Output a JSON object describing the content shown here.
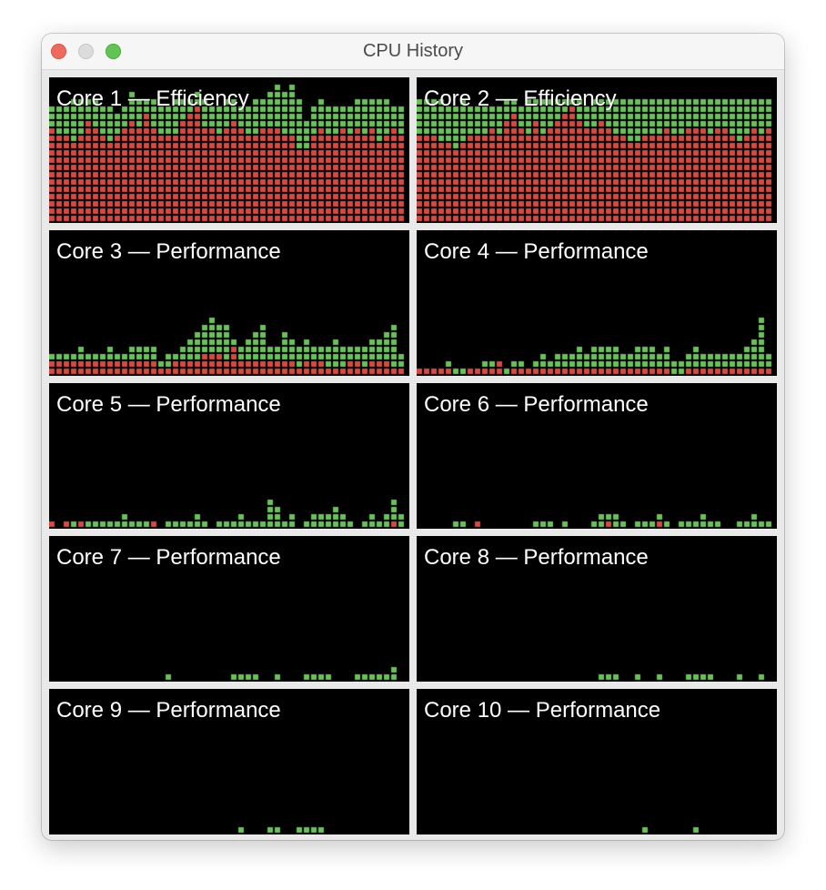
{
  "window": {
    "title": "CPU History"
  },
  "colors": {
    "system": "#d24b45",
    "user": "#6cc05c",
    "background": "#000000",
    "cell_gap": "#000000"
  },
  "cores": [
    {
      "label": "Core 1 — Efficiency",
      "system": [
        13,
        12,
        12,
        11,
        12,
        14,
        13,
        12,
        11,
        12,
        13,
        14,
        13,
        15,
        13,
        12,
        12,
        12,
        14,
        15,
        16,
        13,
        13,
        12,
        13,
        14,
        13,
        12,
        12,
        13,
        13,
        13,
        12,
        12,
        10,
        10,
        12,
        13,
        12,
        12,
        13,
        12,
        13,
        12,
        13,
        11,
        12,
        13,
        12
      ],
      "user": [
        3,
        4,
        4,
        6,
        5,
        3,
        4,
        4,
        5,
        3,
        3,
        4,
        4,
        2,
        4,
        4,
        4,
        5,
        3,
        2,
        2,
        4,
        3,
        4,
        4,
        3,
        3,
        4,
        5,
        4,
        5,
        6,
        6,
        7,
        7,
        4,
        4,
        4,
        4,
        4,
        3,
        4,
        4,
        5,
        4,
        6,
        5,
        3,
        4
      ]
    },
    {
      "label": "Core 2 — Efficiency",
      "system": [
        12,
        12,
        12,
        11,
        11,
        10,
        11,
        12,
        12,
        12,
        13,
        12,
        14,
        15,
        13,
        12,
        14,
        12,
        13,
        14,
        15,
        16,
        14,
        13,
        13,
        14,
        13,
        12,
        12,
        11,
        11,
        12,
        12,
        12,
        13,
        12,
        12,
        13,
        13,
        13,
        12,
        13,
        13,
        12,
        11,
        12,
        13,
        12,
        13
      ],
      "user": [
        5,
        5,
        5,
        6,
        5,
        6,
        6,
        4,
        4,
        4,
        3,
        4,
        3,
        2,
        3,
        5,
        3,
        5,
        4,
        3,
        2,
        1,
        3,
        3,
        4,
        3,
        4,
        5,
        5,
        6,
        6,
        5,
        5,
        5,
        4,
        5,
        5,
        4,
        4,
        4,
        5,
        4,
        4,
        5,
        6,
        5,
        4,
        5,
        4
      ]
    },
    {
      "label": "Core 3 — Performance",
      "system": [
        2,
        2,
        2,
        2,
        2,
        2,
        2,
        2,
        2,
        2,
        2,
        2,
        2,
        2,
        2,
        1,
        1,
        2,
        2,
        2,
        2,
        3,
        3,
        3,
        2,
        4,
        2,
        2,
        2,
        2,
        2,
        2,
        2,
        2,
        1,
        2,
        2,
        2,
        1,
        1,
        1,
        2,
        2,
        1,
        2,
        2,
        2,
        1,
        1
      ],
      "user": [
        1,
        1,
        1,
        1,
        2,
        1,
        1,
        1,
        2,
        1,
        1,
        2,
        2,
        2,
        2,
        1,
        2,
        1,
        2,
        3,
        4,
        4,
        5,
        4,
        5,
        1,
        2,
        3,
        4,
        5,
        2,
        2,
        4,
        3,
        3,
        3,
        2,
        2,
        3,
        4,
        3,
        2,
        2,
        3,
        3,
        3,
        4,
        6,
        2
      ]
    },
    {
      "label": "Core 4 — Performance",
      "system": [
        1,
        1,
        1,
        1,
        1,
        0,
        0,
        1,
        1,
        1,
        1,
        2,
        0,
        1,
        1,
        1,
        1,
        1,
        1,
        1,
        1,
        1,
        1,
        1,
        1,
        1,
        1,
        1,
        1,
        1,
        1,
        1,
        1,
        1,
        1,
        0,
        0,
        1,
        1,
        1,
        1,
        1,
        1,
        1,
        1,
        1,
        1,
        1,
        1
      ],
      "user": [
        0,
        0,
        0,
        0,
        1,
        1,
        1,
        0,
        0,
        1,
        1,
        0,
        1,
        1,
        1,
        0,
        1,
        2,
        1,
        2,
        2,
        2,
        3,
        2,
        3,
        3,
        3,
        3,
        2,
        2,
        3,
        3,
        3,
        2,
        3,
        2,
        2,
        2,
        3,
        2,
        2,
        2,
        2,
        2,
        2,
        3,
        4,
        7,
        2
      ]
    },
    {
      "label": "Core 5 — Performance",
      "system": [
        1,
        0,
        1,
        0,
        1,
        0,
        0,
        0,
        0,
        0,
        0,
        0,
        0,
        0,
        1,
        0,
        0,
        0,
        0,
        0,
        0,
        0,
        0,
        0,
        0,
        0,
        0,
        0,
        0,
        0,
        0,
        0,
        0,
        0,
        0,
        0,
        0,
        0,
        0,
        0,
        0,
        0,
        0,
        0,
        0,
        0,
        0,
        1,
        0
      ],
      "user": [
        0,
        0,
        0,
        1,
        0,
        1,
        1,
        1,
        1,
        1,
        2,
        1,
        1,
        1,
        0,
        0,
        1,
        1,
        1,
        1,
        2,
        1,
        0,
        1,
        1,
        1,
        2,
        1,
        1,
        1,
        4,
        3,
        1,
        2,
        0,
        1,
        2,
        2,
        2,
        3,
        2,
        1,
        0,
        1,
        2,
        1,
        2,
        3,
        2
      ]
    },
    {
      "label": "Core 6 — Performance",
      "system": [
        0,
        0,
        0,
        0,
        0,
        0,
        0,
        0,
        1,
        0,
        0,
        0,
        0,
        0,
        0,
        0,
        0,
        0,
        0,
        0,
        0,
        0,
        0,
        0,
        0,
        0,
        1,
        0,
        0,
        0,
        0,
        0,
        0,
        1,
        0,
        0,
        0,
        0,
        0,
        0,
        0,
        0,
        0,
        0,
        0,
        0,
        0,
        0,
        0
      ],
      "user": [
        0,
        0,
        0,
        0,
        0,
        1,
        1,
        0,
        0,
        0,
        0,
        0,
        0,
        0,
        0,
        0,
        1,
        1,
        1,
        0,
        1,
        0,
        0,
        0,
        1,
        2,
        1,
        2,
        1,
        0,
        1,
        1,
        1,
        1,
        1,
        0,
        1,
        1,
        1,
        2,
        1,
        1,
        0,
        0,
        1,
        1,
        2,
        1,
        1
      ]
    },
    {
      "label": "Core 7 — Performance",
      "system": [
        0,
        0,
        0,
        0,
        0,
        0,
        0,
        0,
        0,
        0,
        0,
        0,
        0,
        0,
        0,
        0,
        0,
        0,
        0,
        0,
        0,
        0,
        0,
        0,
        0,
        0,
        0,
        0,
        0,
        0,
        0,
        0,
        0,
        0,
        0,
        0,
        0,
        0,
        0,
        0,
        0,
        0,
        0,
        0,
        0,
        0,
        0,
        0,
        0
      ],
      "user": [
        0,
        0,
        0,
        0,
        0,
        0,
        0,
        0,
        0,
        0,
        0,
        0,
        0,
        0,
        0,
        0,
        1,
        0,
        0,
        0,
        0,
        0,
        0,
        0,
        0,
        1,
        1,
        1,
        1,
        0,
        0,
        1,
        0,
        0,
        0,
        1,
        1,
        1,
        1,
        0,
        0,
        0,
        1,
        1,
        1,
        1,
        1,
        2,
        0
      ]
    },
    {
      "label": "Core 8 — Performance",
      "system": [
        0,
        0,
        0,
        0,
        0,
        0,
        0,
        0,
        0,
        0,
        0,
        0,
        0,
        0,
        0,
        0,
        0,
        0,
        0,
        0,
        0,
        0,
        0,
        0,
        0,
        0,
        0,
        0,
        0,
        0,
        0,
        0,
        0,
        0,
        0,
        0,
        0,
        0,
        0,
        0,
        0,
        0,
        0,
        0,
        0,
        0,
        0,
        0,
        0
      ],
      "user": [
        0,
        0,
        0,
        0,
        0,
        0,
        0,
        0,
        0,
        0,
        0,
        0,
        0,
        0,
        0,
        0,
        0,
        0,
        0,
        0,
        0,
        0,
        0,
        0,
        0,
        1,
        1,
        1,
        0,
        0,
        1,
        0,
        0,
        1,
        0,
        0,
        0,
        1,
        1,
        1,
        1,
        0,
        0,
        0,
        1,
        0,
        0,
        1,
        0
      ]
    },
    {
      "label": "Core 9 — Performance",
      "system": [
        0,
        0,
        0,
        0,
        0,
        0,
        0,
        0,
        0,
        0,
        0,
        0,
        0,
        0,
        0,
        0,
        0,
        0,
        0,
        0,
        0,
        0,
        0,
        0,
        0,
        0,
        0,
        0,
        0,
        0,
        0,
        0,
        0,
        0,
        0,
        0,
        0,
        0,
        0,
        0,
        0,
        0,
        0,
        0,
        0,
        0,
        0,
        0,
        0
      ],
      "user": [
        0,
        0,
        0,
        0,
        0,
        0,
        0,
        0,
        0,
        0,
        0,
        0,
        0,
        0,
        0,
        0,
        0,
        0,
        0,
        0,
        0,
        0,
        0,
        0,
        0,
        0,
        1,
        0,
        0,
        0,
        1,
        1,
        0,
        0,
        1,
        1,
        1,
        1,
        0,
        0,
        0,
        0,
        0,
        0,
        0,
        0,
        0,
        0,
        0
      ]
    },
    {
      "label": "Core 10 — Performance",
      "system": [
        0,
        0,
        0,
        0,
        0,
        0,
        0,
        0,
        0,
        0,
        0,
        0,
        0,
        0,
        0,
        0,
        0,
        0,
        0,
        0,
        0,
        0,
        0,
        0,
        0,
        0,
        0,
        0,
        0,
        0,
        0,
        0,
        0,
        0,
        0,
        0,
        0,
        0,
        0,
        0,
        0,
        0,
        0,
        0,
        0,
        0,
        0,
        0,
        0
      ],
      "user": [
        0,
        0,
        0,
        0,
        0,
        0,
        0,
        0,
        0,
        0,
        0,
        0,
        0,
        0,
        0,
        0,
        0,
        0,
        0,
        0,
        0,
        0,
        0,
        0,
        0,
        0,
        0,
        0,
        0,
        0,
        0,
        1,
        0,
        0,
        0,
        0,
        0,
        0,
        1,
        0,
        0,
        0,
        0,
        0,
        0,
        0,
        0,
        0,
        0
      ]
    }
  ]
}
